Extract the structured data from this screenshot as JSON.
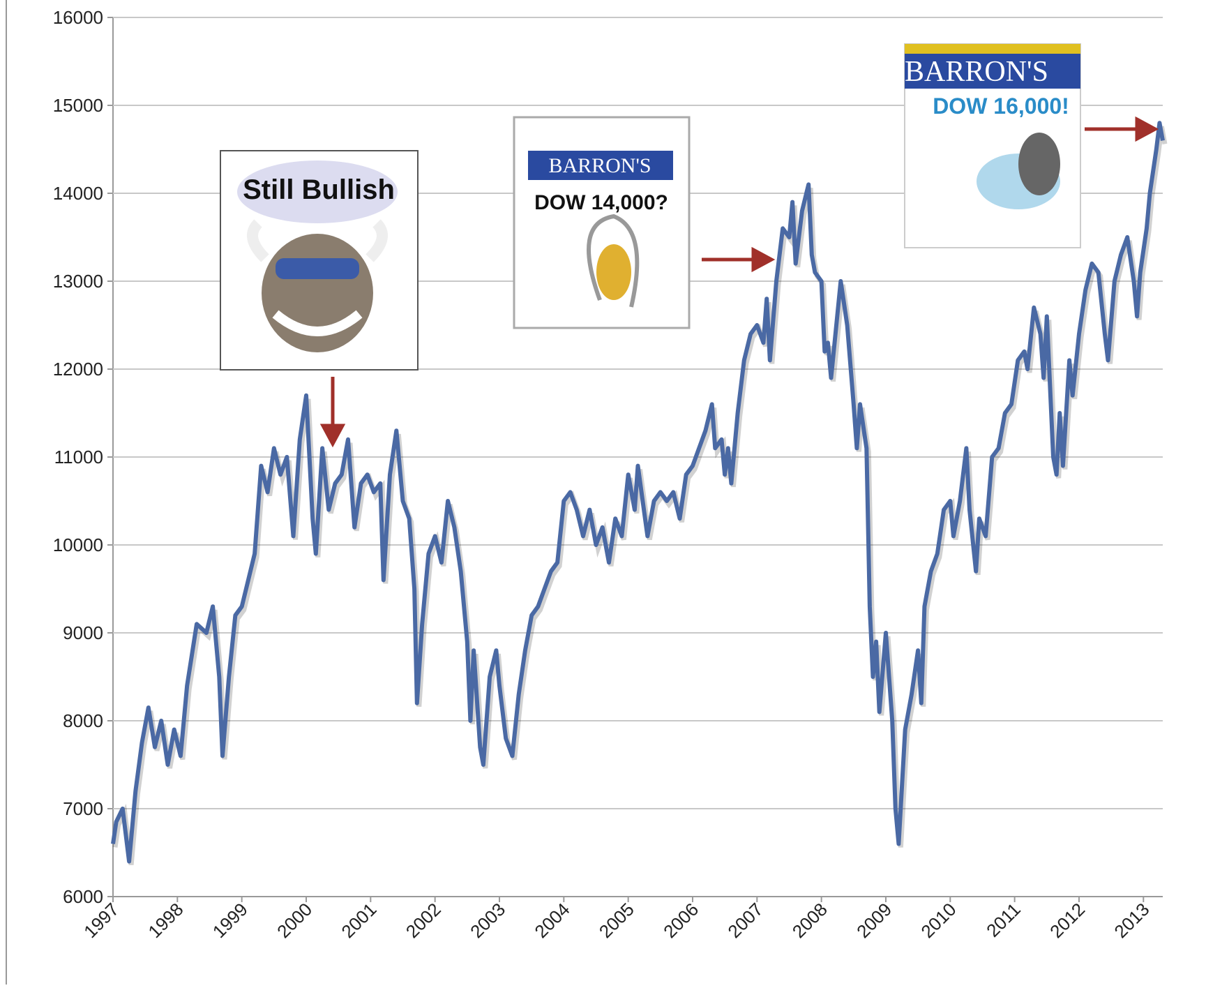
{
  "chart_data": {
    "type": "line",
    "x": [
      1997.0,
      1997.05,
      1997.15,
      1997.25,
      1997.35,
      1997.45,
      1997.55,
      1997.65,
      1997.75,
      1997.85,
      1997.95,
      1998.05,
      1998.15,
      1998.3,
      1998.45,
      1998.55,
      1998.65,
      1998.7,
      1998.8,
      1998.9,
      1999.0,
      1999.1,
      1999.2,
      1999.3,
      1999.4,
      1999.5,
      1999.6,
      1999.7,
      1999.8,
      1999.9,
      2000.0,
      2000.1,
      2000.15,
      2000.25,
      2000.35,
      2000.45,
      2000.55,
      2000.65,
      2000.75,
      2000.85,
      2000.95,
      2001.05,
      2001.15,
      2001.2,
      2001.3,
      2001.4,
      2001.5,
      2001.6,
      2001.68,
      2001.72,
      2001.8,
      2001.9,
      2002.0,
      2002.1,
      2002.2,
      2002.3,
      2002.4,
      2002.5,
      2002.55,
      2002.6,
      2002.7,
      2002.75,
      2002.85,
      2002.95,
      2003.0,
      2003.1,
      2003.2,
      2003.3,
      2003.4,
      2003.5,
      2003.6,
      2003.7,
      2003.8,
      2003.9,
      2004.0,
      2004.1,
      2004.2,
      2004.3,
      2004.4,
      2004.5,
      2004.6,
      2004.7,
      2004.8,
      2004.9,
      2005.0,
      2005.1,
      2005.15,
      2005.3,
      2005.4,
      2005.5,
      2005.6,
      2005.7,
      2005.8,
      2005.9,
      2006.0,
      2006.1,
      2006.2,
      2006.3,
      2006.35,
      2006.45,
      2006.5,
      2006.55,
      2006.6,
      2006.7,
      2006.8,
      2006.9,
      2007.0,
      2007.1,
      2007.15,
      2007.2,
      2007.3,
      2007.4,
      2007.5,
      2007.55,
      2007.6,
      2007.7,
      2007.8,
      2007.85,
      2007.9,
      2008.0,
      2008.05,
      2008.1,
      2008.15,
      2008.3,
      2008.4,
      2008.5,
      2008.55,
      2008.6,
      2008.7,
      2008.75,
      2008.8,
      2008.85,
      2008.9,
      2009.0,
      2009.1,
      2009.15,
      2009.2,
      2009.3,
      2009.4,
      2009.5,
      2009.55,
      2009.6,
      2009.7,
      2009.8,
      2009.9,
      2010.0,
      2010.05,
      2010.15,
      2010.25,
      2010.3,
      2010.4,
      2010.45,
      2010.55,
      2010.65,
      2010.75,
      2010.85,
      2010.95,
      2011.05,
      2011.15,
      2011.2,
      2011.3,
      2011.4,
      2011.45,
      2011.5,
      2011.6,
      2011.65,
      2011.7,
      2011.75,
      2011.85,
      2011.9,
      2012.0,
      2012.1,
      2012.2,
      2012.3,
      2012.4,
      2012.45,
      2012.55,
      2012.65,
      2012.75,
      2012.85,
      2012.9,
      2012.95,
      2013.05,
      2013.1,
      2013.2,
      2013.25,
      2013.3
    ],
    "values": [
      6600,
      6850,
      7000,
      6400,
      7200,
      7750,
      8150,
      7700,
      8000,
      7500,
      7900,
      7600,
      8400,
      9100,
      9000,
      9300,
      8500,
      7600,
      8500,
      9200,
      9300,
      9600,
      9900,
      10900,
      10600,
      11100,
      10800,
      11000,
      10100,
      11200,
      11700,
      10300,
      9900,
      11100,
      10400,
      10700,
      10800,
      11200,
      10200,
      10700,
      10800,
      10600,
      10700,
      9600,
      10800,
      11300,
      10500,
      10300,
      9500,
      8200,
      9100,
      9900,
      10100,
      9800,
      10500,
      10200,
      9700,
      8900,
      8000,
      8800,
      7700,
      7500,
      8500,
      8800,
      8400,
      7800,
      7600,
      8300,
      8800,
      9200,
      9300,
      9500,
      9700,
      9800,
      10500,
      10600,
      10400,
      10100,
      10400,
      10000,
      10200,
      9800,
      10300,
      10100,
      10800,
      10400,
      10900,
      10100,
      10500,
      10600,
      10500,
      10600,
      10300,
      10800,
      10900,
      11100,
      11300,
      11600,
      11100,
      11200,
      10800,
      11100,
      10700,
      11500,
      12100,
      12400,
      12500,
      12300,
      12800,
      12100,
      13000,
      13600,
      13500,
      13900,
      13200,
      13800,
      14100,
      13300,
      13100,
      13000,
      12200,
      12300,
      11900,
      13000,
      12500,
      11600,
      11100,
      11600,
      11100,
      9300,
      8500,
      8900,
      8100,
      9000,
      8000,
      7000,
      6600,
      7900,
      8300,
      8800,
      8200,
      9300,
      9700,
      9900,
      10400,
      10500,
      10100,
      10500,
      11100,
      10400,
      9700,
      10300,
      10100,
      11000,
      11100,
      11500,
      11600,
      12100,
      12200,
      12000,
      12700,
      12400,
      11900,
      12600,
      11000,
      10800,
      11500,
      10900,
      12100,
      11700,
      12400,
      12900,
      13200,
      13100,
      12400,
      12100,
      13000,
      13300,
      13500,
      13000,
      12600,
      13100,
      13600,
      14000,
      14500,
      14800,
      14600
    ],
    "color": "#4a69a4",
    "xlim": [
      1997,
      2013.3
    ],
    "xticks": [
      1997,
      1998,
      1999,
      2000,
      2001,
      2002,
      2003,
      2004,
      2005,
      2006,
      2007,
      2008,
      2009,
      2010,
      2011,
      2012,
      2013
    ],
    "ylim": [
      6000,
      16000
    ],
    "yticks": [
      6000,
      7000,
      8000,
      9000,
      10000,
      11000,
      12000,
      13000,
      14000,
      15000,
      16000
    ],
    "grid": true,
    "annotations": [
      "Still Bullish",
      "BARRON'S",
      "DOW 14,000?",
      "BARRON'S",
      "DOW 16,000!"
    ]
  }
}
